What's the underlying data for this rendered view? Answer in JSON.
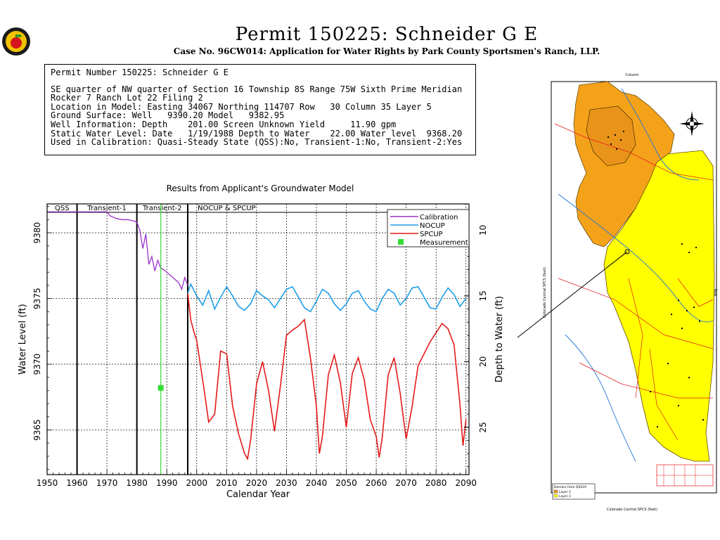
{
  "header": {
    "title": "Permit  150225:   Schneider G E",
    "subtitle": "Case No. 96CW014: Application for Water Rights by Park County Sportsmen's Ranch, LLP."
  },
  "info": {
    "lines": [
      "Permit Number 150225: Schneider G E",
      "",
      "SE quarter of NW quarter of Section 16 Township 8S Range 75W Sixth Prime Meridian",
      "Rocker 7 Ranch Lot 22 Filing 2",
      "Location in Model: Easting 34067 Northing 114707 Row   30 Column 35 Layer 5",
      "Ground Surface: Well   9390.20 Model   9382.95",
      "Well Information: Depth    201.00 Screen Unknown Yield     11.90 gpm",
      "Static Water Level: Date   1/19/1988 Depth to Water    22.00 Water level  9368.20",
      "Used in Calibration: Quasi-Steady State (QSS):No, Transient-1:No, Transient-2:Yes"
    ]
  },
  "chart_data": {
    "type": "line",
    "title": "Results from Applicant's Groundwater Model",
    "xlabel": "Calendar Year",
    "ylabel": "Water Level (ft)",
    "ylabel_right": "Depth to Water (ft)",
    "xlim": [
      1950,
      2091
    ],
    "ylim": [
      9361.6,
      9382.2
    ],
    "xticks": [
      1950,
      1960,
      1970,
      1980,
      1990,
      2000,
      2010,
      2020,
      2030,
      2040,
      2050,
      2060,
      2070,
      2080,
      2090
    ],
    "yticks": [
      9365,
      9370,
      9375,
      9380
    ],
    "yticks_right": [
      10,
      15,
      20,
      25
    ],
    "ground_surface_model": 9390.2,
    "periods": [
      {
        "label": "QSS",
        "start": 1950,
        "end": 1960
      },
      {
        "label": "Transient-1",
        "start": 1960,
        "end": 1980
      },
      {
        "label": "Transient-2",
        "start": 1980,
        "end": 1997
      },
      {
        "label": "NOCUP  &  SPCUP",
        "start": 1997,
        "end": 2091
      }
    ],
    "legend": {
      "placement": "top-right",
      "entries": [
        "Calibration",
        "NOCUP",
        "SPCUP",
        "Measurement"
      ]
    },
    "series": [
      {
        "name": "Calibration",
        "color": "#9b30c8",
        "x": [
          1950,
          1970,
          1971,
          1973,
          1975,
          1977,
          1979,
          1980,
          1981,
          1982,
          1983,
          1984,
          1985,
          1986,
          1987,
          1988,
          1989,
          1990,
          1991,
          1992,
          1993,
          1994,
          1995,
          1996,
          1997
        ],
        "y": [
          9381.6,
          9381.6,
          9381.3,
          9381.1,
          9381.0,
          9381.0,
          9380.9,
          9380.8,
          9380.2,
          9378.8,
          9379.9,
          9377.6,
          9378.2,
          9377.1,
          9377.9,
          9377.3,
          9377.2,
          9377.0,
          9376.8,
          9376.6,
          9376.4,
          9376.2,
          9375.7,
          9376.6,
          9376.0
        ]
      },
      {
        "name": "NOCUP",
        "color": "#1e9ee6",
        "x": [
          1997,
          1998,
          2000,
          2002,
          2004,
          2006,
          2008,
          2010,
          2012,
          2014,
          2016,
          2018,
          2020,
          2022,
          2024,
          2026,
          2028,
          2030,
          2032,
          2034,
          2036,
          2038,
          2040,
          2042,
          2044,
          2046,
          2048,
          2050,
          2052,
          2054,
          2056,
          2058,
          2060,
          2062,
          2064,
          2066,
          2068,
          2070,
          2072,
          2074,
          2076,
          2078,
          2080,
          2082,
          2084,
          2086,
          2088,
          2090
        ],
        "y": [
          9375.4,
          9376.1,
          9375.2,
          9374.5,
          9375.6,
          9374.2,
          9375.1,
          9375.9,
          9375.2,
          9374.4,
          9374.1,
          9374.6,
          9375.6,
          9375.2,
          9374.9,
          9374.3,
          9375.0,
          9375.7,
          9375.9,
          9375.1,
          9374.3,
          9374.0,
          9374.8,
          9375.7,
          9375.4,
          9374.6,
          9374.1,
          9374.6,
          9375.4,
          9375.6,
          9374.8,
          9374.2,
          9374.0,
          9375.0,
          9375.7,
          9375.4,
          9374.5,
          9375.0,
          9375.8,
          9375.9,
          9375.1,
          9374.3,
          9374.2,
          9375.1,
          9375.8,
          9375.3,
          9374.4,
          9375.0
        ]
      },
      {
        "name": "SPCUP",
        "color": "#e41a1a",
        "x": [
          1997,
          1998,
          1999,
          2000,
          2002,
          2004,
          2006,
          2008,
          2010,
          2012,
          2014,
          2016,
          2017,
          2018,
          2020,
          2022,
          2024,
          2026,
          2028,
          2030,
          2032,
          2034,
          2036,
          2038,
          2040,
          2041,
          2042,
          2044,
          2046,
          2048,
          2050,
          2052,
          2054,
          2056,
          2058,
          2060,
          2061,
          2062,
          2064,
          2066,
          2068,
          2070,
          2072,
          2074,
          2076,
          2078,
          2080,
          2082,
          2084,
          2086,
          2088,
          2089,
          2090
        ],
        "y": [
          9375.4,
          9373.4,
          9372.5,
          9371.8,
          9368.8,
          9365.6,
          9366.2,
          9371.0,
          9370.8,
          9366.8,
          9364.7,
          9363.2,
          9362.8,
          9364.2,
          9368.5,
          9370.2,
          9368.0,
          9364.9,
          9368.4,
          9372.2,
          9372.6,
          9372.9,
          9373.4,
          9370.5,
          9366.8,
          9363.2,
          9364.5,
          9369.2,
          9370.7,
          9368.6,
          9365.2,
          9369.3,
          9370.5,
          9368.8,
          9365.8,
          9364.5,
          9362.9,
          9364.4,
          9369.2,
          9370.5,
          9367.8,
          9364.3,
          9366.8,
          9369.9,
          9370.8,
          9371.7,
          9372.4,
          9373.1,
          9372.7,
          9371.5,
          9366.9,
          9363.8,
          9365.8
        ]
      }
    ],
    "measurements": [
      {
        "x": 1988,
        "y": 9368.2
      }
    ]
  },
  "map": {
    "domain_label": "Domain from QSS19",
    "layer1_label": "Layer 1",
    "layer2_label": "Layer 2",
    "top_label": "Column",
    "bottom_label": "Colorado Central SPCS (feet)",
    "left_label": "Colorado Central SPCS (feet)",
    "right_label": "Row",
    "layer1_color": "#f5a21b",
    "layer2_color": "#ffff00"
  }
}
